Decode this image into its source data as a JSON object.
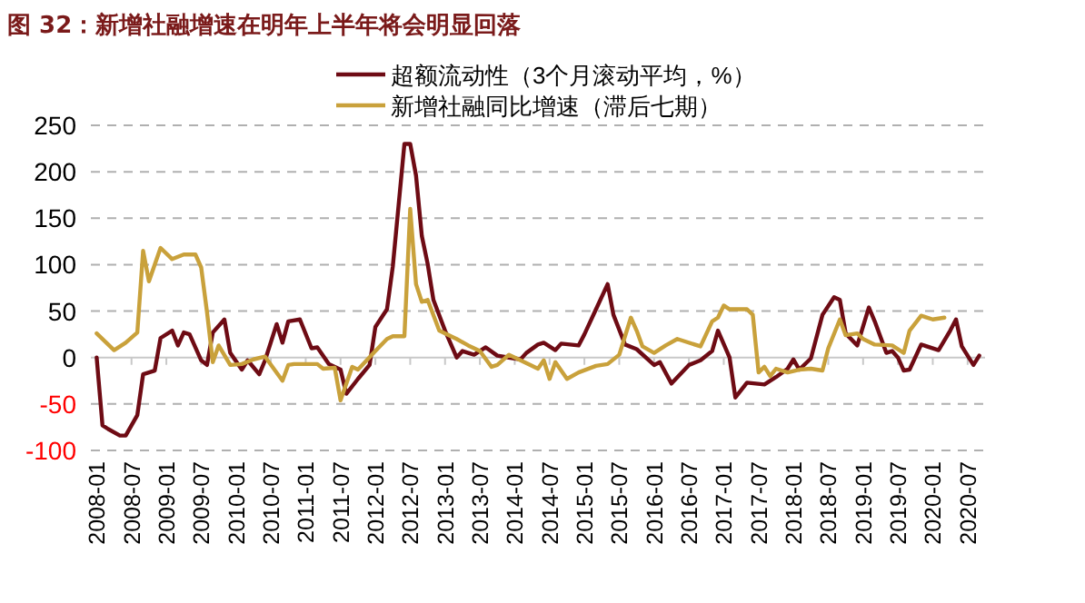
{
  "chart_data": {
    "type": "line",
    "title": "图 32：新增社融增速在明年上半年将会明显回落",
    "xlim": [
      "2007-12",
      "2020-10"
    ],
    "xticks": [
      "2008-01",
      "2008-07",
      "2009-01",
      "2009-07",
      "2010-01",
      "2010-07",
      "2011-01",
      "2011-07",
      "2012-01",
      "2012-07",
      "2013-01",
      "2013-07",
      "2014-01",
      "2014-07",
      "2015-01",
      "2015-07",
      "2016-01",
      "2016-07",
      "2017-01",
      "2017-07",
      "2018-01",
      "2018-07",
      "2019-01",
      "2019-07",
      "2020-01",
      "2020-07"
    ],
    "ylim": [
      -100,
      250
    ],
    "yticks": [
      -100,
      -50,
      0,
      50,
      100,
      150,
      200,
      250
    ],
    "grid": "y",
    "legend": "top",
    "line_style": "solid",
    "marker": "none",
    "series": [
      {
        "name": "超额流动性（3个月滚动平均，%）",
        "color": "#6e0b14",
        "x": [
          "2008-01",
          "2008-02",
          "2008-03",
          "2008-05",
          "2008-06",
          "2008-08",
          "2008-09",
          "2008-11",
          "2008-12",
          "2009-02",
          "2009-03",
          "2009-04",
          "2009-05",
          "2009-07",
          "2009-08",
          "2009-09",
          "2009-11",
          "2009-12",
          "2010-02",
          "2010-03",
          "2010-05",
          "2010-06",
          "2010-08",
          "2010-09",
          "2010-10",
          "2010-12",
          "2011-02",
          "2011-03",
          "2011-05",
          "2011-07",
          "2011-08",
          "2011-10",
          "2011-12",
          "2012-01",
          "2012-03",
          "2012-04",
          "2012-05",
          "2012-06",
          "2012-07",
          "2012-08",
          "2012-09",
          "2012-10",
          "2012-11",
          "2013-01",
          "2013-03",
          "2013-04",
          "2013-06",
          "2013-08",
          "2013-10",
          "2013-12",
          "2014-02",
          "2014-03",
          "2014-05",
          "2014-06",
          "2014-08",
          "2014-09",
          "2014-12",
          "2015-01",
          "2015-03",
          "2015-05",
          "2015-06",
          "2015-08",
          "2015-10",
          "2016-01",
          "2016-02",
          "2016-04",
          "2016-07",
          "2016-09",
          "2016-11",
          "2016-12",
          "2017-02",
          "2017-03",
          "2017-05",
          "2017-08",
          "2017-10",
          "2017-12",
          "2018-01",
          "2018-02",
          "2018-04",
          "2018-06",
          "2018-08",
          "2018-09",
          "2018-10",
          "2018-12",
          "2019-02",
          "2019-03",
          "2019-05",
          "2019-06",
          "2019-07",
          "2019-08",
          "2019-09",
          "2019-11",
          "2020-02",
          "2020-04",
          "2020-05",
          "2020-06",
          "2020-08",
          "2020-09"
        ],
        "values": [
          0,
          -73,
          -77,
          -84,
          -84,
          -62,
          -18,
          -14,
          21,
          29,
          13,
          27,
          25,
          -3,
          -8,
          27,
          41,
          5,
          -13,
          -3,
          -18,
          -3,
          36,
          16,
          39,
          41,
          10,
          11,
          -7,
          -13,
          -39,
          -23,
          -8,
          33,
          52,
          98,
          164,
          230,
          230,
          196,
          131,
          101,
          62,
          29,
          0,
          7,
          3,
          11,
          2,
          0,
          -2,
          5,
          14,
          16,
          8,
          15,
          13,
          25,
          52,
          79,
          46,
          14,
          9,
          -8,
          -5,
          -28,
          -8,
          -3,
          7,
          29,
          0,
          -43,
          -27,
          -29,
          -21,
          -12,
          -2,
          -13,
          -1,
          46,
          65,
          62,
          26,
          13,
          54,
          39,
          5,
          7,
          0,
          -14,
          -13,
          14,
          8,
          29,
          41,
          12,
          -8,
          2
        ]
      },
      {
        "name": "新增社融同比增速（滞后七期）",
        "color": "#c9a13b",
        "x": [
          "2008-01",
          "2008-04",
          "2008-06",
          "2008-08",
          "2008-09",
          "2008-10",
          "2008-12",
          "2009-02",
          "2009-04",
          "2009-06",
          "2009-07",
          "2009-08",
          "2009-09",
          "2009-10",
          "2009-12",
          "2010-02",
          "2010-04",
          "2010-06",
          "2010-09",
          "2010-10",
          "2010-11",
          "2011-03",
          "2011-04",
          "2011-06",
          "2011-07",
          "2011-09",
          "2011-10",
          "2012-01",
          "2012-03",
          "2012-04",
          "2012-06",
          "2012-07",
          "2012-08",
          "2012-09",
          "2012-10",
          "2012-12",
          "2013-02",
          "2013-03",
          "2013-05",
          "2013-07",
          "2013-09",
          "2013-10",
          "2013-12",
          "2014-02",
          "2014-05",
          "2014-06",
          "2014-07",
          "2014-08",
          "2014-10",
          "2014-12",
          "2015-03",
          "2015-05",
          "2015-07",
          "2015-09",
          "2015-10",
          "2015-11",
          "2016-01",
          "2016-03",
          "2016-05",
          "2016-09",
          "2016-11",
          "2016-12",
          "2017-01",
          "2017-02",
          "2017-03",
          "2017-05",
          "2017-06",
          "2017-07",
          "2017-08",
          "2017-09",
          "2017-10",
          "2017-12",
          "2018-02",
          "2018-04",
          "2018-06",
          "2018-07",
          "2018-09",
          "2018-10",
          "2018-12",
          "2019-01",
          "2019-03",
          "2019-06",
          "2019-08",
          "2019-09",
          "2019-11",
          "2020-01",
          "2020-03"
        ],
        "values": [
          26,
          8,
          16,
          27,
          115,
          82,
          118,
          106,
          111,
          111,
          97,
          49,
          -5,
          13,
          -8,
          -7,
          -2,
          1,
          -25,
          -8,
          -7,
          -7,
          -12,
          -11,
          -46,
          -10,
          -13,
          7,
          20,
          23,
          23,
          160,
          79,
          60,
          62,
          29,
          23,
          20,
          13,
          7,
          -10,
          -8,
          3,
          -3,
          -12,
          -3,
          -23,
          -5,
          -23,
          -16,
          -9,
          -7,
          3,
          43,
          29,
          12,
          5,
          13,
          20,
          12,
          39,
          43,
          56,
          52,
          52,
          52,
          46,
          -16,
          -10,
          -20,
          -12,
          -16,
          -13,
          -12,
          -14,
          10,
          41,
          24,
          26,
          20,
          14,
          13,
          5,
          29,
          45,
          41,
          43
        ]
      }
    ]
  }
}
